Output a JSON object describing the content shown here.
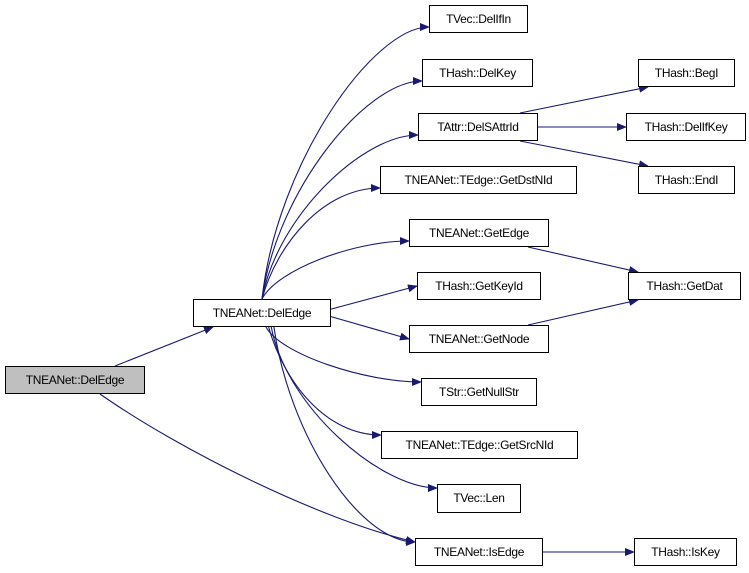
{
  "graph": {
    "edge_color": "#191970",
    "root_fill": "#bfbfbf",
    "nodes": [
      {
        "id": "root",
        "label": "TNEANet::DelEdge"
      },
      {
        "id": "deledge",
        "label": "TNEANet::DelEdge"
      },
      {
        "id": "delifin",
        "label": "TVec::DelIfIn"
      },
      {
        "id": "delkey",
        "label": "THash::DelKey"
      },
      {
        "id": "delsattr",
        "label": "TAttr::DelSAttrId"
      },
      {
        "id": "getdst",
        "label": "TNEANet::TEdge::GetDstNId"
      },
      {
        "id": "getedge",
        "label": "TNEANet::GetEdge"
      },
      {
        "id": "getkeyid",
        "label": "THash::GetKeyId"
      },
      {
        "id": "getnode",
        "label": "TNEANet::GetNode"
      },
      {
        "id": "getnull",
        "label": "TStr::GetNullStr"
      },
      {
        "id": "getsrc",
        "label": "TNEANet::TEdge::GetSrcNId"
      },
      {
        "id": "len",
        "label": "TVec::Len"
      },
      {
        "id": "isedge",
        "label": "TNEANet::IsEdge"
      },
      {
        "id": "begi",
        "label": "THash::BegI"
      },
      {
        "id": "delifkey",
        "label": "THash::DelIfKey"
      },
      {
        "id": "endi",
        "label": "THash::EndI"
      },
      {
        "id": "getdat",
        "label": "THash::GetDat"
      },
      {
        "id": "iskey",
        "label": "THash::IsKey"
      }
    ],
    "edges": [
      [
        "root",
        "deledge"
      ],
      [
        "root",
        "isedge"
      ],
      [
        "deledge",
        "delifin"
      ],
      [
        "deledge",
        "delkey"
      ],
      [
        "deledge",
        "delsattr"
      ],
      [
        "deledge",
        "getdst"
      ],
      [
        "deledge",
        "getedge"
      ],
      [
        "deledge",
        "getkeyid"
      ],
      [
        "deledge",
        "getnode"
      ],
      [
        "deledge",
        "getnull"
      ],
      [
        "deledge",
        "getsrc"
      ],
      [
        "deledge",
        "len"
      ],
      [
        "deledge",
        "isedge"
      ],
      [
        "delsattr",
        "begi"
      ],
      [
        "delsattr",
        "delifkey"
      ],
      [
        "delsattr",
        "endi"
      ],
      [
        "getedge",
        "getdat"
      ],
      [
        "getnode",
        "getdat"
      ],
      [
        "isedge",
        "iskey"
      ]
    ]
  }
}
